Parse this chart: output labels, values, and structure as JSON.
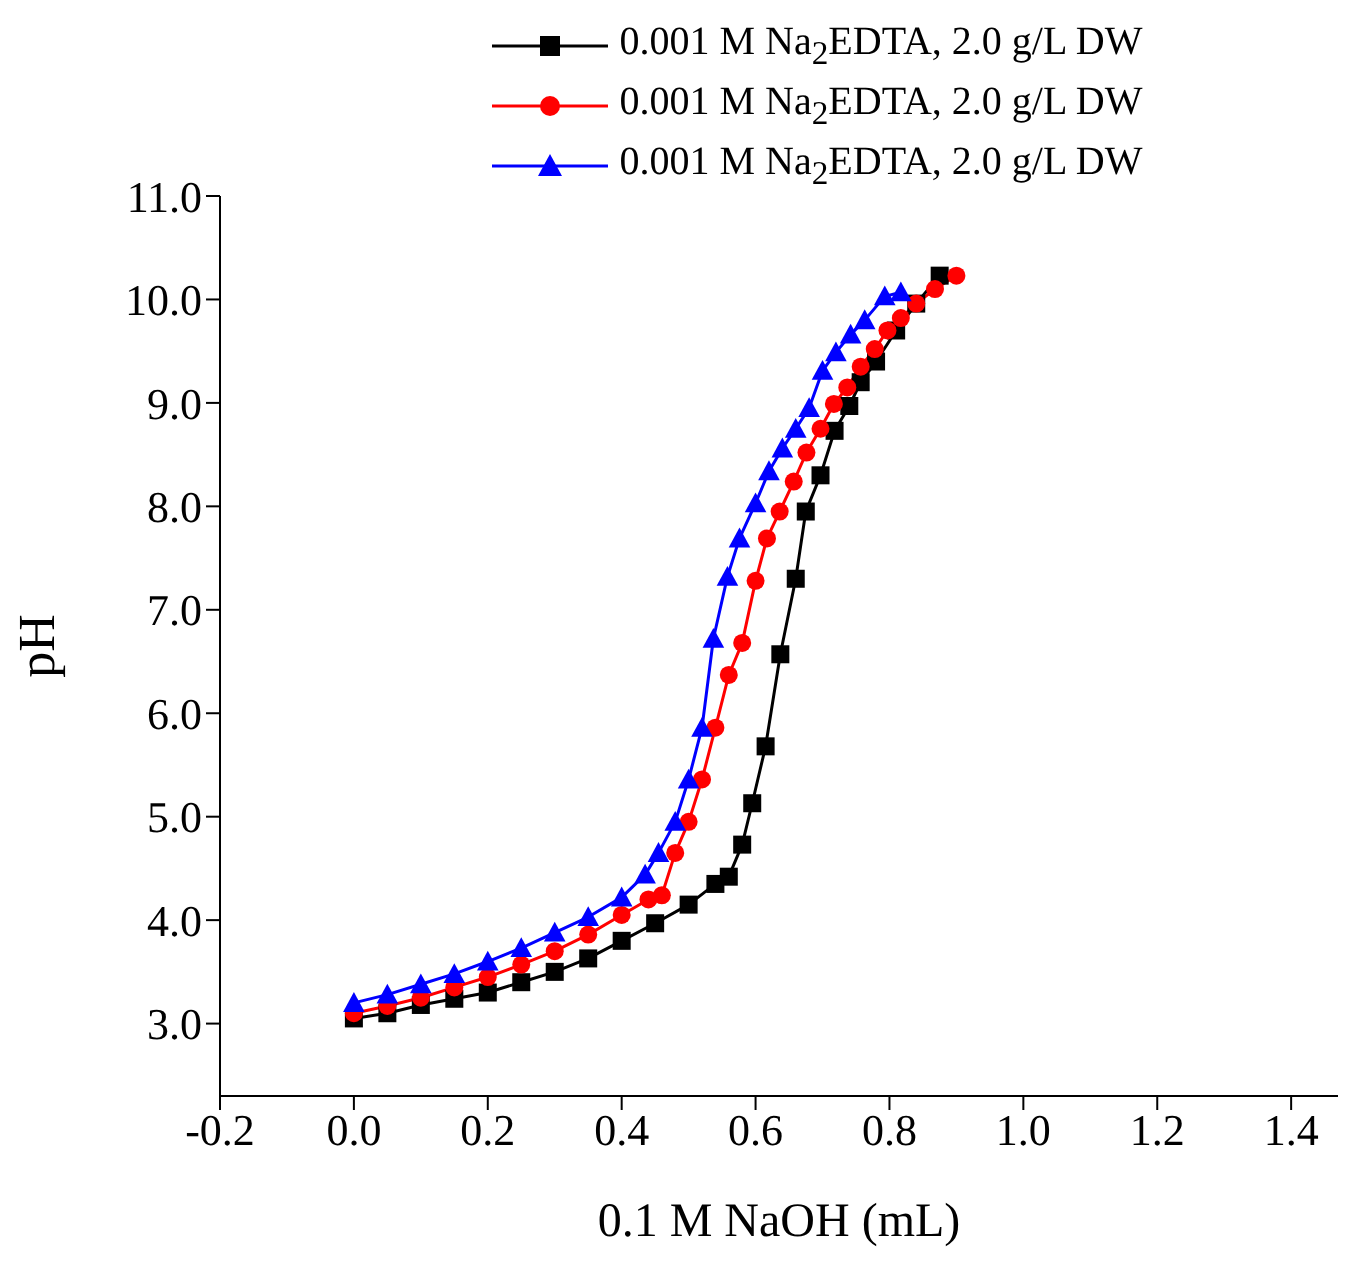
{
  "chart_data": {
    "type": "line",
    "xlabel": "0.1 M NaOH (mL)",
    "ylabel": "pH",
    "xlim": [
      -0.2,
      1.47
    ],
    "xticks": [
      {
        "value": -0.2,
        "label": "-0.2"
      },
      {
        "value": 0,
        "label": "0.0"
      },
      {
        "value": 0.2,
        "label": "0.2"
      },
      {
        "value": 0.4,
        "label": "0.4"
      },
      {
        "value": 0.6,
        "label": "0.6"
      },
      {
        "value": 0.8,
        "label": "0.8"
      },
      {
        "value": 1,
        "label": "1.0"
      },
      {
        "value": 1.2,
        "label": "1.2"
      },
      {
        "value": 1.4,
        "label": "1.4"
      }
    ],
    "ylim": [
      2.3,
      11
    ],
    "yticks": [
      {
        "value": 3,
        "label": "3.0"
      },
      {
        "value": 4,
        "label": "4.0"
      },
      {
        "value": 5,
        "label": "5.0"
      },
      {
        "value": 6,
        "label": "6.0"
      },
      {
        "value": 7,
        "label": "7.0"
      },
      {
        "value": 8,
        "label": "8.0"
      },
      {
        "value": 9,
        "label": "9.0"
      },
      {
        "value": 10,
        "label": "10.0"
      },
      {
        "value": 11,
        "label": "11.0"
      }
    ],
    "legend": "top",
    "series": [
      {
        "name": "0.001 M Na$_{2}$EDTA, 2.0 g/L DW",
        "color": "#000000",
        "marker": "square",
        "x": [
          0,
          0.05,
          0.1,
          0.15,
          0.2,
          0.25,
          0.3,
          0.35,
          0.4,
          0.45,
          0.5,
          0.54,
          0.56,
          0.58,
          0.595,
          0.615,
          0.637,
          0.66,
          0.675,
          0.697,
          0.718,
          0.74,
          0.757,
          0.78,
          0.81,
          0.84,
          0.875
        ],
        "values": [
          3.05,
          3.1,
          3.18,
          3.24,
          3.3,
          3.4,
          3.5,
          3.63,
          3.8,
          3.97,
          4.15,
          4.35,
          4.42,
          4.73,
          5.13,
          5.68,
          6.57,
          7.3,
          7.95,
          8.3,
          8.73,
          8.97,
          9.2,
          9.4,
          9.7,
          9.96,
          10.23
        ]
      },
      {
        "name": "0.001 M Na$_{2}$EDTA, 2.0 g/L DW",
        "color": "#ff0000",
        "marker": "circle",
        "x": [
          0,
          0.05,
          0.1,
          0.15,
          0.2,
          0.25,
          0.3,
          0.35,
          0.4,
          0.44,
          0.46,
          0.48,
          0.5,
          0.52,
          0.54,
          0.56,
          0.58,
          0.6,
          0.617,
          0.636,
          0.657,
          0.676,
          0.697,
          0.717,
          0.737,
          0.757,
          0.778,
          0.797,
          0.817,
          0.84,
          0.868,
          0.9
        ],
        "values": [
          3.1,
          3.17,
          3.25,
          3.35,
          3.45,
          3.57,
          3.7,
          3.86,
          4.05,
          4.2,
          4.24,
          4.65,
          4.95,
          5.36,
          5.86,
          6.37,
          6.68,
          7.28,
          7.69,
          7.95,
          8.24,
          8.52,
          8.75,
          8.99,
          9.15,
          9.35,
          9.52,
          9.7,
          9.82,
          9.96,
          10.1,
          10.23
        ]
      },
      {
        "name": "0.001 M Na$_{2}$EDTA, 2.0 g/L DW",
        "color": "#0000ff",
        "marker": "triangle",
        "x": [
          0,
          0.05,
          0.1,
          0.15,
          0.2,
          0.25,
          0.3,
          0.35,
          0.4,
          0.435,
          0.455,
          0.48,
          0.5,
          0.52,
          0.537,
          0.558,
          0.576,
          0.6,
          0.62,
          0.64,
          0.66,
          0.68,
          0.7,
          0.72,
          0.742,
          0.763,
          0.793,
          0.817
        ],
        "values": [
          3.2,
          3.28,
          3.38,
          3.48,
          3.6,
          3.73,
          3.88,
          4.03,
          4.22,
          4.44,
          4.65,
          4.95,
          5.36,
          5.86,
          6.72,
          7.32,
          7.69,
          8.03,
          8.34,
          8.56,
          8.75,
          8.95,
          9.31,
          9.49,
          9.66,
          9.8,
          10.03,
          10.07
        ]
      }
    ]
  }
}
